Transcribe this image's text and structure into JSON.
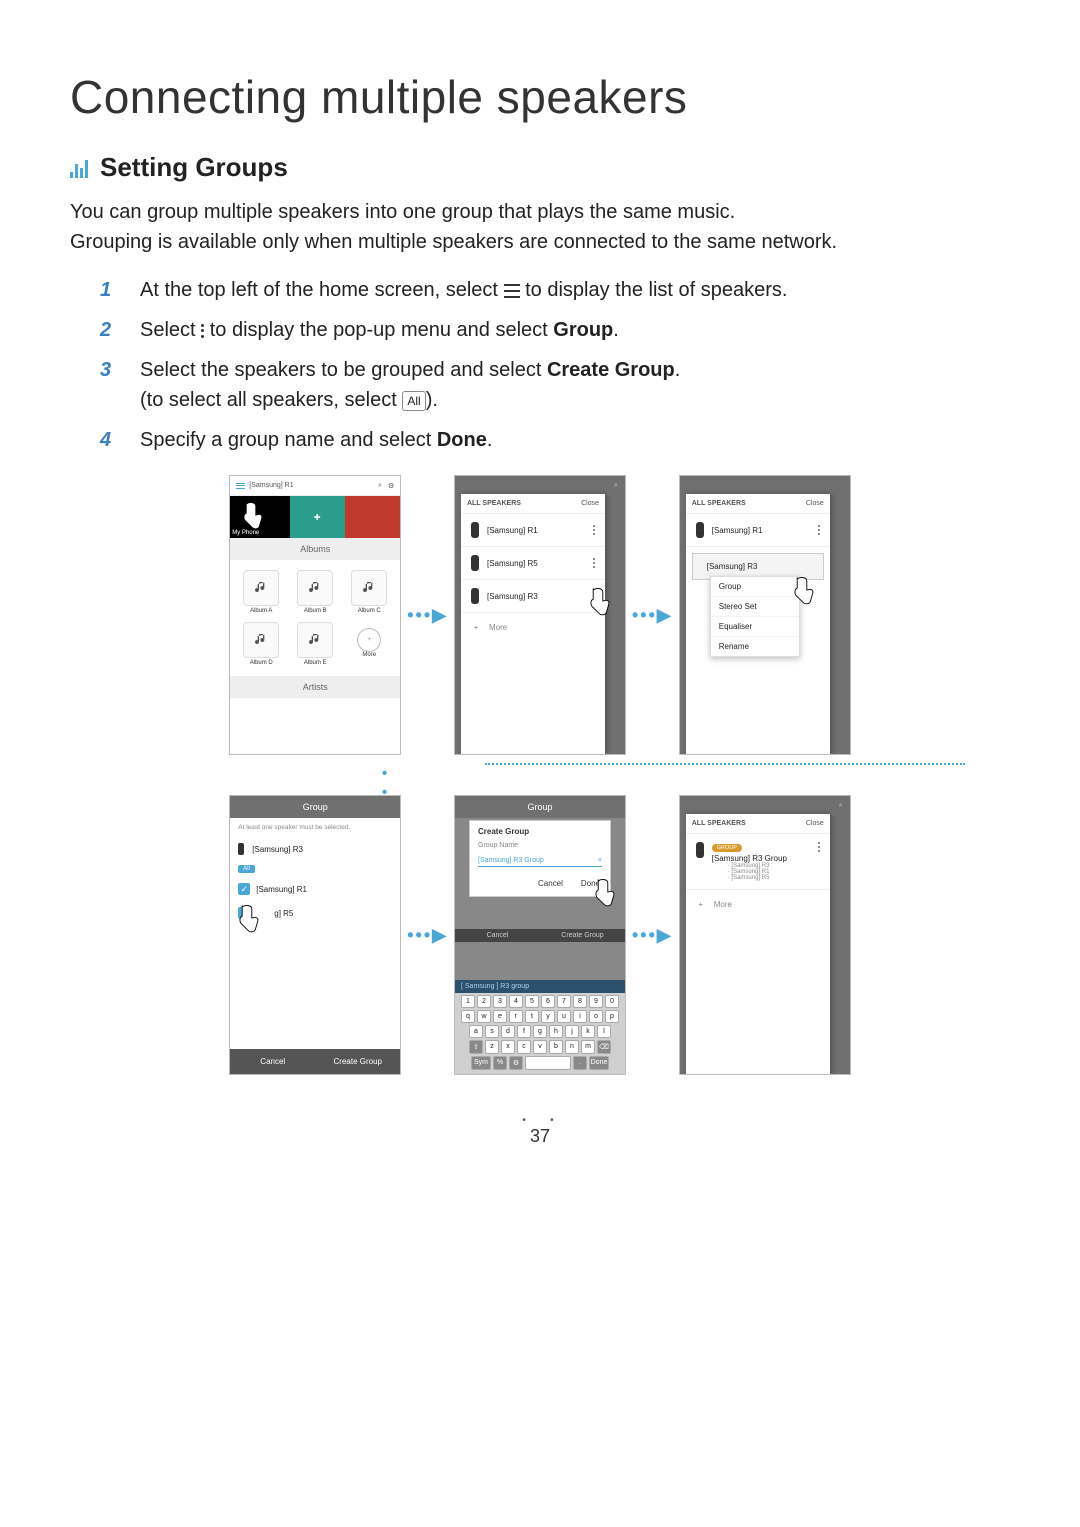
{
  "page_title": "Connecting multiple speakers",
  "section_title": "Setting Groups",
  "accent_color": "#4aa8d8",
  "intro_line1": "You can group multiple speakers into one group that plays the same music.",
  "intro_line2": "Grouping is available only when multiple speakers are connected to the same network.",
  "steps": {
    "s1_a": "At the top left of the home screen, select ",
    "s1_b": " to display the list of speakers.",
    "s2_a": "Select ",
    "s2_b": " to display the pop-up menu and select ",
    "s2_bold": "Group",
    "s2_c": ".",
    "s3_a": "Select the speakers to be grouped and select ",
    "s3_bold": "Create Group",
    "s3_b": ".",
    "s3_c": "(to select all speakers, select ",
    "s3_all": "All",
    "s3_d": ").",
    "s4_a": "Specify a group name and select ",
    "s4_bold": "Done",
    "s4_b": "."
  },
  "phone1": {
    "header_label": "[Samsung] R1",
    "myphone": "My Phone",
    "band_albums": "Albums",
    "band_artists": "Artists",
    "albumA": "Album A",
    "albumB": "Album B",
    "albumC": "Album C",
    "albumD": "Album D",
    "albumE": "Album E",
    "more": "More"
  },
  "panel_header": {
    "title": "ALL SPEAKERS",
    "close": "Close"
  },
  "speakers": {
    "r1": "[Samsung] R1",
    "r5": "[Samsung] R5",
    "r3": "[Samsung] R3"
  },
  "more": "More",
  "dropdown": {
    "group": "Group",
    "stereo": "Stereo Set",
    "eq": "Equaliser",
    "rename": "Rename"
  },
  "group_screen": {
    "title": "Group",
    "hint": "At least one speaker must be selected.",
    "all": "All",
    "cancel": "Cancel",
    "create": "Create Group"
  },
  "dialog": {
    "title": "Create Group",
    "sub": "Group Name",
    "value": "[Samsung] R3 Group",
    "cancel": "Cancel",
    "done": "Done"
  },
  "kb_title": "[ Samsung ] R3 group",
  "result": {
    "group_chip": "GROUP",
    "group_name": "[Samsung] R3 Group",
    "m1": "· [Samsung] R3",
    "m2": "· [Samsung] R1",
    "m3": "· [Samsung] R5"
  },
  "keyboard": {
    "row1": [
      "1",
      "2",
      "3",
      "4",
      "5",
      "6",
      "7",
      "8",
      "9",
      "0"
    ],
    "row2": [
      "q",
      "w",
      "e",
      "r",
      "t",
      "y",
      "u",
      "i",
      "o",
      "p"
    ],
    "row3": [
      "a",
      "s",
      "d",
      "f",
      "g",
      "h",
      "j",
      "k",
      "l"
    ],
    "row4": [
      "⇧",
      "z",
      "x",
      "c",
      "v",
      "b",
      "n",
      "m",
      "⌫"
    ],
    "row5": [
      "Sym",
      "%",
      "⚙",
      "space",
      ".",
      "Done"
    ]
  },
  "page_number": "37"
}
